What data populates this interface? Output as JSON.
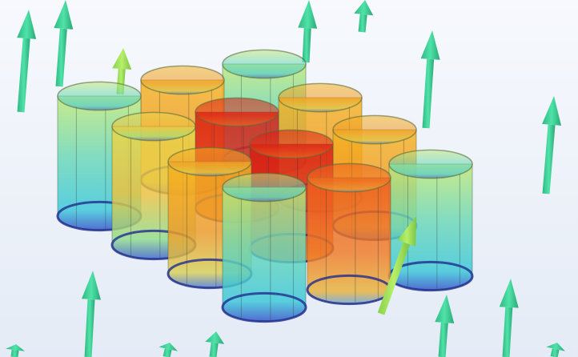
{
  "scene": {
    "background": "#eef3fa",
    "arrow_color": "#3ddc9b",
    "arrow_highlight_color": "#9be35a",
    "cylinder_edge_color": "#1f2d8f",
    "palette": {
      "cold": "#38d6c6",
      "mild": "#c9e64a",
      "warm": "#f5b21e",
      "hot": "#ee5a1c",
      "hottest": "#d8180e"
    },
    "arrow_count": 15,
    "cylinder_count": 12
  }
}
